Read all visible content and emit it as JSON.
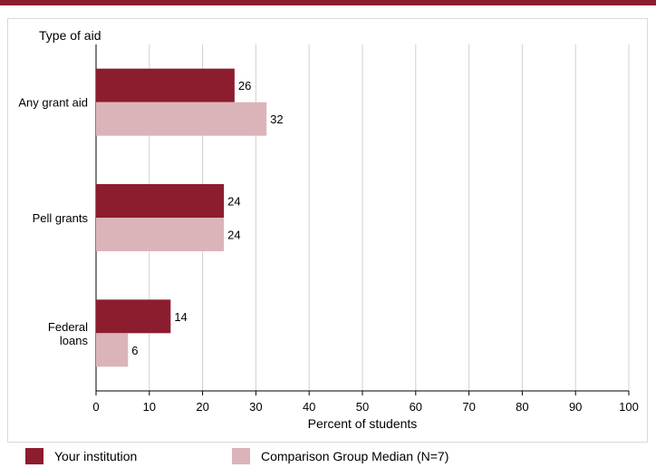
{
  "chart_data": {
    "type": "bar",
    "orientation": "horizontal",
    "ylabel": "Type of aid",
    "xlabel": "Percent of students",
    "categories": [
      [
        "Any grant aid"
      ],
      [
        "Pell grants"
      ],
      [
        "Federal",
        "loans"
      ]
    ],
    "series": [
      {
        "name": "Your institution",
        "values": [
          26,
          24,
          14
        ],
        "color": "#8c1d2e"
      },
      {
        "name": "Comparison Group Median (N=7)",
        "values": [
          32,
          24,
          6
        ],
        "color": "#dbb4ba"
      }
    ],
    "xlim": [
      0,
      100
    ],
    "xticks": [
      0,
      10,
      20,
      30,
      40,
      50,
      60,
      70,
      80,
      90,
      100
    ],
    "grid": true,
    "legend_position": "bottom"
  }
}
